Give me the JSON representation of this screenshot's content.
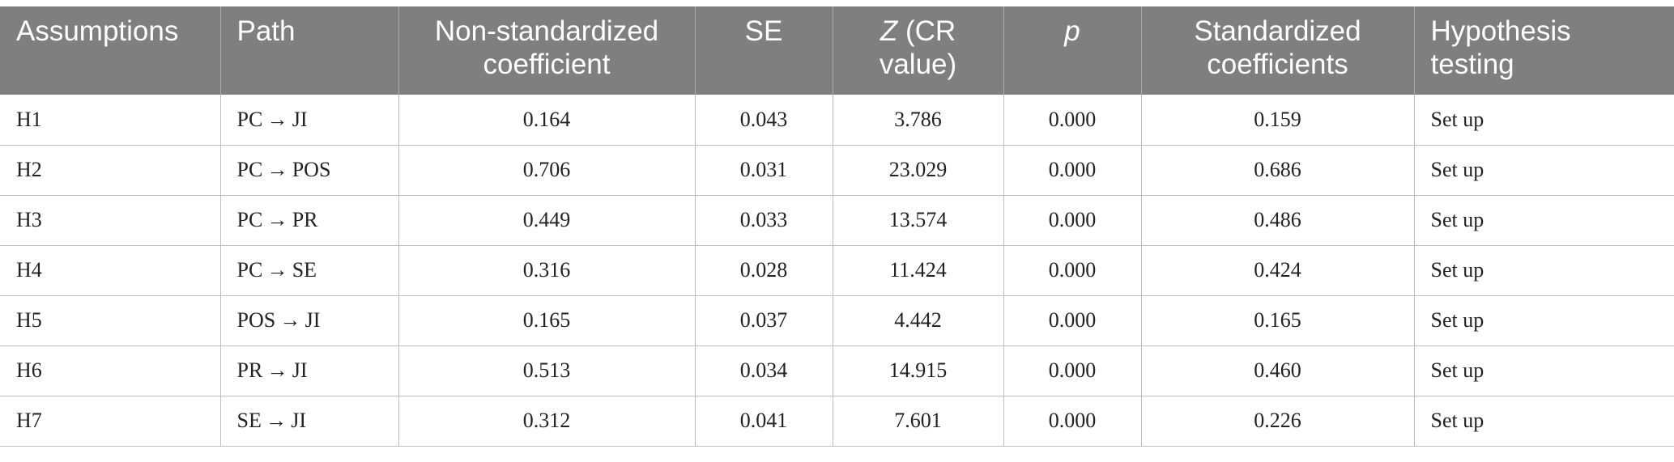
{
  "table": {
    "headers": {
      "assumptions": "Assumptions",
      "path": "Path",
      "nonstd_line1": "Non-standardized",
      "nonstd_line2": "coefficient",
      "se": "SE",
      "z_italic": "Z",
      "z_rest1": " (CR",
      "z_line2": "value)",
      "p": "p",
      "std_line1": "Standardized",
      "std_line2": "coefficients",
      "hyp_line1": "Hypothesis",
      "hyp_line2": "testing"
    },
    "rows": [
      {
        "assumption": "H1",
        "path": "PC → JI",
        "nonstd": "0.164",
        "se": "0.043",
        "z": "3.786",
        "p": "0.000",
        "std": "0.159",
        "hyp": "Set up"
      },
      {
        "assumption": "H2",
        "path": "PC → POS",
        "nonstd": "0.706",
        "se": "0.031",
        "z": "23.029",
        "p": "0.000",
        "std": "0.686",
        "hyp": "Set up"
      },
      {
        "assumption": "H3",
        "path": "PC → PR",
        "nonstd": "0.449",
        "se": "0.033",
        "z": "13.574",
        "p": "0.000",
        "std": "0.486",
        "hyp": "Set up"
      },
      {
        "assumption": "H4",
        "path": "PC → SE",
        "nonstd": "0.316",
        "se": "0.028",
        "z": "11.424",
        "p": "0.000",
        "std": "0.424",
        "hyp": "Set up"
      },
      {
        "assumption": "H5",
        "path": "POS → JI",
        "nonstd": "0.165",
        "se": "0.037",
        "z": "4.442",
        "p": "0.000",
        "std": "0.165",
        "hyp": "Set up"
      },
      {
        "assumption": "H6",
        "path": "PR → JI",
        "nonstd": "0.513",
        "se": "0.034",
        "z": "14.915",
        "p": "0.000",
        "std": "0.460",
        "hyp": "Set up"
      },
      {
        "assumption": "H7",
        "path": "SE → JI",
        "nonstd": "0.312",
        "se": "0.041",
        "z": "7.601",
        "p": "0.000",
        "std": "0.226",
        "hyp": "Set up"
      }
    ]
  }
}
